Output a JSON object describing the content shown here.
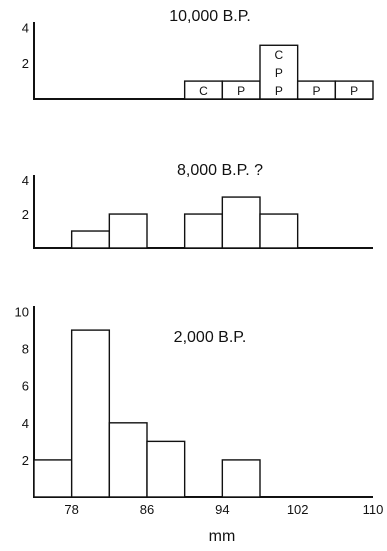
{
  "chart_data": [
    {
      "type": "bar",
      "title": "10,000 B.P.",
      "bin_width": 4,
      "yticks": [
        2,
        4
      ],
      "ylim": [
        0,
        4.3
      ],
      "bins": [
        {
          "x0": 90,
          "x1": 94,
          "value": 1,
          "letters": [
            "C"
          ]
        },
        {
          "x0": 94,
          "x1": 98,
          "value": 1,
          "letters": [
            "P"
          ]
        },
        {
          "x0": 98,
          "x1": 102,
          "value": 3,
          "letters": [
            "C",
            "P",
            "P"
          ]
        },
        {
          "x0": 102,
          "x1": 106,
          "value": 1,
          "letters": [
            "P"
          ]
        },
        {
          "x0": 106,
          "x1": 110,
          "value": 1,
          "letters": [
            "P"
          ]
        }
      ]
    },
    {
      "type": "bar",
      "title": "8,000 B.P. ?",
      "bin_width": 4,
      "yticks": [
        2,
        4
      ],
      "ylim": [
        0,
        4.3
      ],
      "bins": [
        {
          "x0": 78,
          "x1": 82,
          "value": 1
        },
        {
          "x0": 82,
          "x1": 86,
          "value": 2
        },
        {
          "x0": 90,
          "x1": 94,
          "value": 2
        },
        {
          "x0": 94,
          "x1": 98,
          "value": 3
        },
        {
          "x0": 98,
          "x1": 102,
          "value": 2
        }
      ]
    },
    {
      "type": "bar",
      "title": "2,000 B.P.",
      "bin_width": 4,
      "yticks": [
        2,
        4,
        6,
        8,
        10
      ],
      "ylim": [
        0,
        10.3
      ],
      "bins": [
        {
          "x0": 74,
          "x1": 78,
          "value": 2
        },
        {
          "x0": 78,
          "x1": 82,
          "value": 9
        },
        {
          "x0": 82,
          "x1": 86,
          "value": 4
        },
        {
          "x0": 86,
          "x1": 90,
          "value": 3
        },
        {
          "x0": 94,
          "x1": 98,
          "value": 2
        }
      ],
      "xlabel": "mm",
      "xticks": [
        78,
        86,
        94,
        102,
        110
      ],
      "xlim": [
        74,
        110
      ]
    }
  ]
}
